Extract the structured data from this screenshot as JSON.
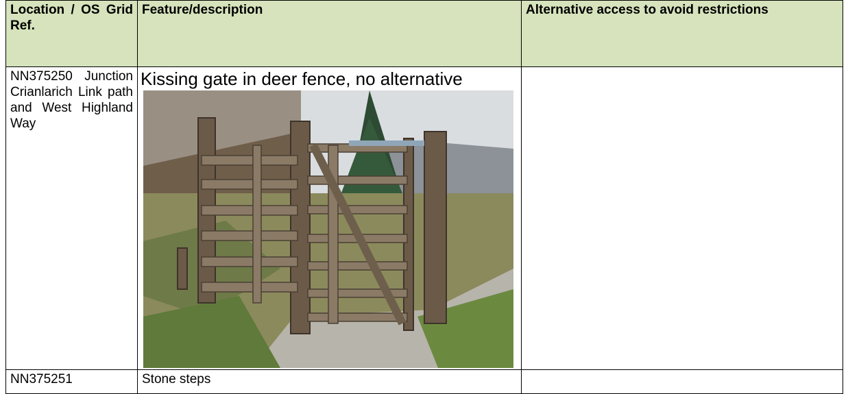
{
  "table": {
    "header": [
      "Location / OS Grid Ref.",
      "Feature/description",
      "Alternative access to avoid restrictions"
    ],
    "rows": [
      {
        "location": "NN375250 Junction Crianlarich Link path and West Highland Way",
        "feature": "Kissing gate in deer fence, no alternative"
      },
      {
        "location": "NN375251",
        "feature": "Stone steps"
      }
    ]
  }
}
